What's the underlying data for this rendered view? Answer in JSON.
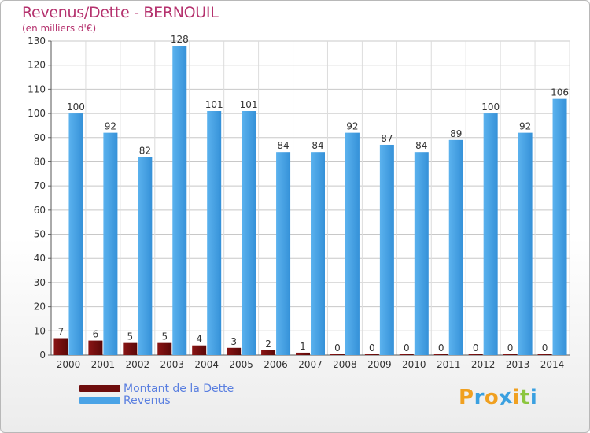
{
  "header": {
    "title": "Revenus/Dette - BERNOUIL",
    "subtitle": "(en milliers d'€)"
  },
  "chart_data": {
    "type": "bar",
    "categories": [
      "2000",
      "2001",
      "2002",
      "2003",
      "2004",
      "2005",
      "2006",
      "2007",
      "2008",
      "2009",
      "2010",
      "2011",
      "2012",
      "2013",
      "2014"
    ],
    "series": [
      {
        "name": "Montant de la Dette",
        "color": "#7a0f0f",
        "values": [
          7,
          6,
          5,
          5,
          4,
          3,
          2,
          1,
          0,
          0,
          0,
          0,
          0,
          0,
          0
        ]
      },
      {
        "name": "Revenus",
        "color": "#4aa3e6",
        "values": [
          100,
          92,
          82,
          128,
          101,
          101,
          84,
          84,
          92,
          87,
          84,
          89,
          100,
          92,
          106
        ]
      }
    ],
    "ylim": [
      0,
      130
    ],
    "yticks": [
      0,
      10,
      20,
      30,
      40,
      50,
      60,
      70,
      80,
      90,
      100,
      110,
      120,
      130
    ],
    "grid": true,
    "legend_position": "bottom-left"
  },
  "legend": {
    "items": [
      {
        "label": "Montant de la Dette",
        "color": "#7a0f0f"
      },
      {
        "label": "Revenus",
        "color": "#4aa3e6"
      }
    ]
  },
  "logo": {
    "letters": [
      "P",
      "r",
      "o",
      "x",
      "i",
      "t",
      "i"
    ],
    "colors": [
      "#f0a020",
      "#3aa0e0",
      "#f0a020",
      "#3aa0e0",
      "#f0a020",
      "#8cc63e",
      "#3aa0e0"
    ]
  }
}
